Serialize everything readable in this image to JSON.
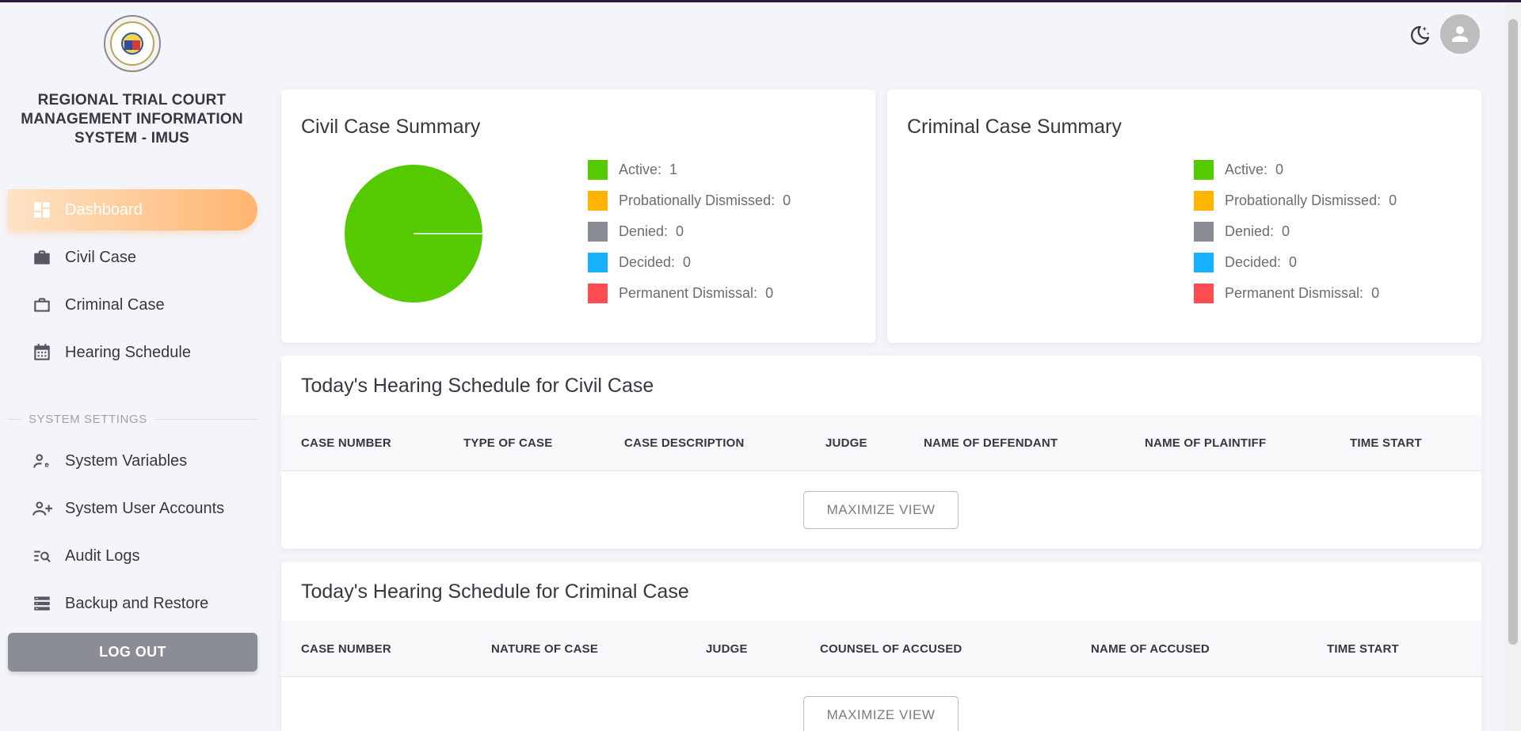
{
  "app": {
    "title": "REGIONAL TRIAL COURT MANAGEMENT INFORMATION SYSTEM - IMUS"
  },
  "sidebar": {
    "items": [
      {
        "label": "Dashboard",
        "icon": "dashboard-icon"
      },
      {
        "label": "Civil Case",
        "icon": "briefcase-filled-icon"
      },
      {
        "label": "Criminal Case",
        "icon": "briefcase-outline-icon"
      },
      {
        "label": "Hearing Schedule",
        "icon": "calendar-icon"
      }
    ],
    "section_label": "SYSTEM SETTINGS",
    "settings_items": [
      {
        "label": "System Variables",
        "icon": "user-cog-icon"
      },
      {
        "label": "System User Accounts",
        "icon": "user-plus-icon"
      },
      {
        "label": "Audit Logs",
        "icon": "list-search-icon"
      },
      {
        "label": "Backup and Restore",
        "icon": "server-stack-icon"
      }
    ],
    "logout_label": "LOG OUT"
  },
  "colors": {
    "active": "#56ca00",
    "probationally_dismissed": "#ffb400",
    "denied": "#8a8d93",
    "decided": "#16b1ff",
    "permanent_dismissal": "#ff4c51",
    "nav_gradient_end": "#ffb56f"
  },
  "civil_summary": {
    "title": "Civil Case Summary",
    "legend": [
      {
        "label": "Active:",
        "value": "1"
      },
      {
        "label": "Probationally Dismissed:",
        "value": "0"
      },
      {
        "label": "Denied:",
        "value": "0"
      },
      {
        "label": "Decided:",
        "value": "0"
      },
      {
        "label": "Permanent Dismissal:",
        "value": "0"
      }
    ]
  },
  "criminal_summary": {
    "title": "Criminal Case Summary",
    "legend": [
      {
        "label": "Active:",
        "value": "0"
      },
      {
        "label": "Probationally Dismissed:",
        "value": "0"
      },
      {
        "label": "Denied:",
        "value": "0"
      },
      {
        "label": "Decided:",
        "value": "0"
      },
      {
        "label": "Permanent Dismissal:",
        "value": "0"
      }
    ]
  },
  "chart_data": [
    {
      "type": "pie",
      "title": "Civil Case Summary",
      "categories": [
        "Active",
        "Probationally Dismissed",
        "Denied",
        "Decided",
        "Permanent Dismissal"
      ],
      "values": [
        1,
        0,
        0,
        0,
        0
      ]
    },
    {
      "type": "pie",
      "title": "Criminal Case Summary",
      "categories": [
        "Active",
        "Probationally Dismissed",
        "Denied",
        "Decided",
        "Permanent Dismissal"
      ],
      "values": [
        0,
        0,
        0,
        0,
        0
      ]
    }
  ],
  "civil_hearing": {
    "title": "Today's Hearing Schedule for Civil Case",
    "columns": [
      "CASE NUMBER",
      "TYPE OF CASE",
      "CASE DESCRIPTION",
      "JUDGE",
      "NAME OF DEFENDANT",
      "NAME OF PLAINTIFF",
      "TIME START"
    ],
    "button_label": "MAXIMIZE VIEW"
  },
  "criminal_hearing": {
    "title": "Today's Hearing Schedule for Criminal Case",
    "columns": [
      "CASE NUMBER",
      "NATURE OF CASE",
      "JUDGE",
      "COUNSEL OF ACCUSED",
      "NAME OF ACCUSED",
      "TIME START"
    ],
    "button_label": "MAXIMIZE VIEW"
  }
}
